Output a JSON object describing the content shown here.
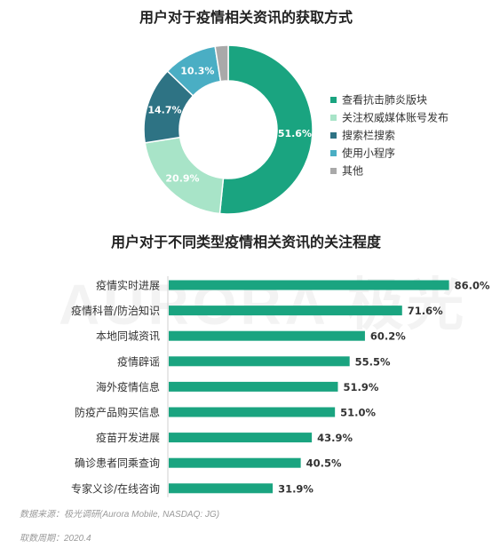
{
  "chart_data": [
    {
      "type": "pie",
      "title": "用户对于疫情相关资讯的获取方式",
      "slices": [
        {
          "label": "查看抗击肺炎版块",
          "value": 51.6,
          "display": "51.6%",
          "color": "#1aa480"
        },
        {
          "label": "关注权威媒体账号发布",
          "value": 20.9,
          "display": "20.9%",
          "color": "#a8e4c8"
        },
        {
          "label": "搜索栏搜索",
          "value": 14.7,
          "display": "14.7%",
          "color": "#2e7384"
        },
        {
          "label": "使用小程序",
          "value": 10.3,
          "display": "10.3%",
          "color": "#4aaec4"
        },
        {
          "label": "其他",
          "value": 2.5,
          "display": "",
          "color": "#a9a9a9"
        }
      ],
      "legend_position": "right"
    },
    {
      "type": "bar",
      "orientation": "horizontal",
      "title": "用户对于不同类型疫情相关资讯的关注程度",
      "categories": [
        "疫情实时进展",
        "疫情科普/防治知识",
        "本地同城资讯",
        "疫情辟谣",
        "海外疫情信息",
        "防疫产品购买信息",
        "疫苗开发进展",
        "确诊患者同乘查询",
        "专家义诊/在线咨询"
      ],
      "values": [
        86.0,
        71.6,
        60.2,
        55.5,
        51.9,
        51.0,
        43.9,
        40.5,
        31.9
      ],
      "value_labels": [
        "86.0%",
        "71.6%",
        "60.2%",
        "55.5%",
        "51.9%",
        "51.0%",
        "43.9%",
        "40.5%",
        "31.9%"
      ],
      "bar_color": "#1aa480",
      "xlim": [
        0,
        100
      ]
    }
  ],
  "watermark": "AURORA 极光",
  "footer": {
    "source": "数据来源：极光调研(Aurora Mobile, NASDAQ: JG)",
    "period": "取数周期：2020.4"
  }
}
